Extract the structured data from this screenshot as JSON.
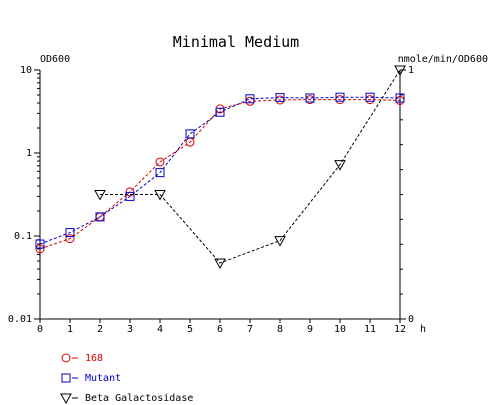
{
  "chart_data": {
    "type": "line",
    "title": "Minimal Medium",
    "xlabel": "h",
    "ylabel_left": "OD600",
    "ylabel_right": "nmole/min/OD600",
    "x_ticks": [
      0,
      1,
      2,
      3,
      4,
      5,
      6,
      7,
      8,
      9,
      10,
      11,
      12
    ],
    "y_left_ticks": [
      "10",
      "1",
      "0.1",
      "0.01"
    ],
    "y_left_scale": "log",
    "y_left_lim": [
      0.01,
      10
    ],
    "y_right_ticks": [
      "1",
      "0"
    ],
    "y_right_lim": [
      0,
      1
    ],
    "grid": false,
    "legend_position": "bottom-left",
    "series": [
      {
        "name": "168",
        "axis": "left",
        "marker": "circle",
        "color": "#dd0000",
        "x": [
          0,
          1,
          2,
          3,
          4,
          5,
          6,
          7,
          8,
          9,
          10,
          11,
          12
        ],
        "values": [
          0.07,
          0.093,
          0.17,
          0.34,
          0.78,
          1.35,
          3.4,
          4.2,
          4.35,
          4.4,
          4.4,
          4.4,
          4.3
        ]
      },
      {
        "name": "Mutant",
        "axis": "left",
        "marker": "square",
        "color": "#0000cc",
        "x": [
          0,
          1,
          2,
          3,
          4,
          5,
          6,
          7,
          8,
          9,
          10,
          11,
          12
        ],
        "values": [
          0.08,
          0.11,
          0.17,
          0.3,
          0.58,
          1.7,
          3.1,
          4.5,
          4.65,
          4.6,
          4.7,
          4.7,
          4.6
        ]
      },
      {
        "name": "Beta Galactosidase",
        "axis": "right",
        "marker": "triangle-down",
        "color": "#000000",
        "x": [
          2,
          4,
          6,
          8,
          10,
          12
        ],
        "values": [
          0.5,
          0.5,
          0.225,
          0.315,
          0.62,
          1.0
        ]
      }
    ]
  }
}
